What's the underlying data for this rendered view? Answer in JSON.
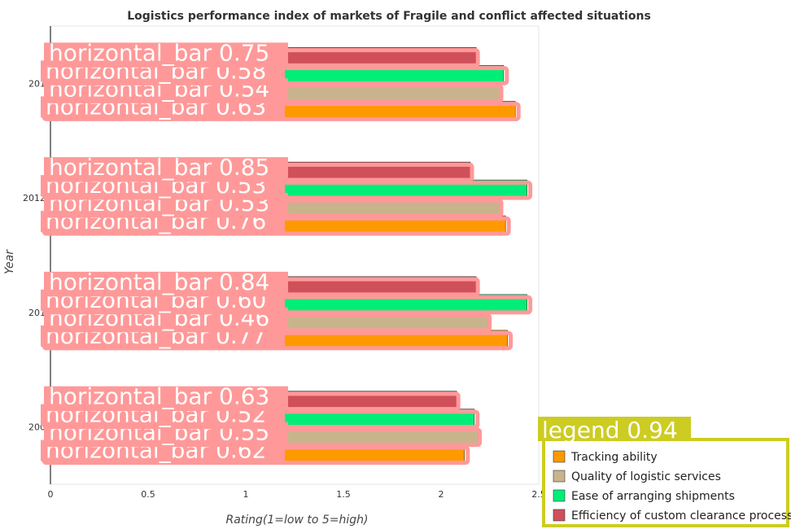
{
  "chart_data": {
    "type": "bar",
    "orientation": "horizontal",
    "title": "Logistics performance index of markets of Fragile and conflict affected situations",
    "xlabel": "Rating(1=low to 5=high)",
    "ylabel": "Year",
    "categories": [
      "2007",
      "2010",
      "2012",
      "2014"
    ],
    "category_labels_visible": [
      "200",
      "201",
      "2012",
      "201"
    ],
    "xlim": [
      0,
      2.5
    ],
    "x_ticks": [
      "0",
      "0.5",
      "1",
      "1.5",
      "2",
      "2.5"
    ],
    "series": [
      {
        "name": "Tracking ability",
        "color": "#ff9900",
        "values": [
          2.12,
          2.34,
          2.33,
          2.38
        ]
      },
      {
        "name": "Quality of logistic services",
        "color": "#c8b48c",
        "values": [
          2.19,
          2.24,
          2.3,
          2.3
        ]
      },
      {
        "name": "Ease of arranging shipments",
        "color": "#00ee77",
        "values": [
          2.17,
          2.44,
          2.44,
          2.32
        ]
      },
      {
        "name": "Efficiency of custom clearance process",
        "color": "#d0505a",
        "values": [
          2.08,
          2.18,
          2.15,
          2.18
        ]
      }
    ],
    "grid": false,
    "legend_position": "bottom-right"
  },
  "annotations": {
    "bar_labels": [
      [
        "horizontal_bar 0.62",
        "horizontal_bar 0.55",
        "horizontal_bar 0.52",
        "horizontal_bar 0.63"
      ],
      [
        "horizontal_bar 0.77",
        "horizontal_bar 0.46",
        "horizontal_bar 0.60",
        "horizontal_bar 0.84"
      ],
      [
        "horizontal_bar 0.76",
        "horizontal_bar 0.53",
        "horizontal_bar 0.53",
        "horizontal_bar 0.85"
      ],
      [
        "horizontal_bar 0.63",
        "horizontal_bar 0.54",
        "horizontal_bar 0.58",
        "horizontal_bar 0.75"
      ]
    ],
    "legend_label": "legend 0.94",
    "box_color": "#ff9999",
    "legend_box_color": "#cccc22"
  }
}
